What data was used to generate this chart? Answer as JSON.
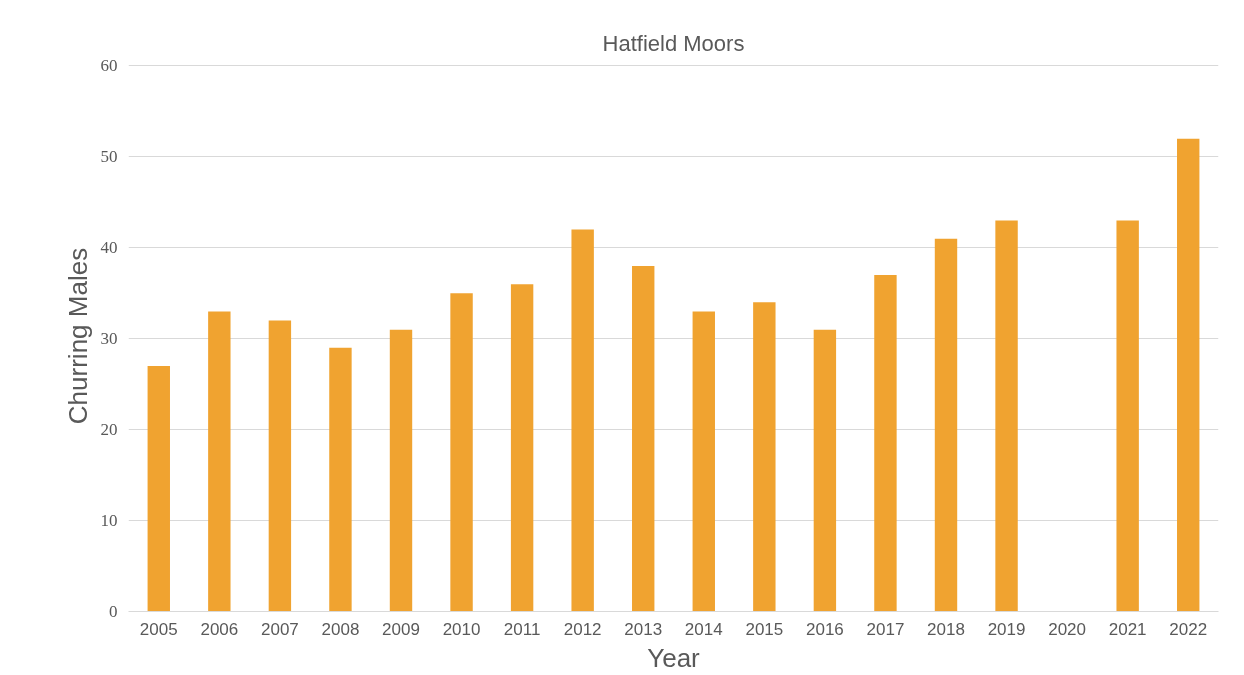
{
  "chart_data": {
    "type": "bar",
    "title": "Hatfield Moors",
    "xlabel": "Year",
    "ylabel": "Churring Males",
    "categories": [
      "2005",
      "2006",
      "2007",
      "2008",
      "2009",
      "2010",
      "2011",
      "2012",
      "2013",
      "2014",
      "2015",
      "2016",
      "2017",
      "2018",
      "2019",
      "2020",
      "2021",
      "2022"
    ],
    "values": [
      27,
      33,
      32,
      29,
      31,
      35,
      36,
      42,
      38,
      33,
      34,
      31,
      37,
      41,
      43,
      null,
      43,
      52
    ],
    "color": "#f0a330",
    "ylim": [
      0,
      60
    ],
    "yticks": [
      0,
      10,
      20,
      30,
      40,
      50,
      60
    ],
    "grid": "y"
  }
}
